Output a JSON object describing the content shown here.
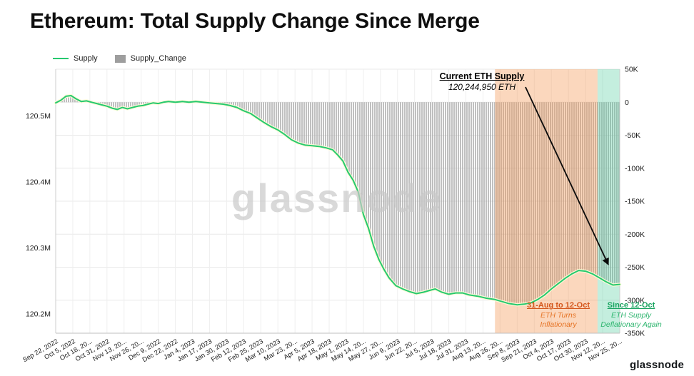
{
  "title": "Ethereum: Total Supply Change Since Merge",
  "legend": {
    "supply": "Supply",
    "supply_change": "Supply_Change"
  },
  "watermark": "glassnode",
  "footer": {
    "brand": "glassnode"
  },
  "annotations": {
    "current_supply": {
      "label": "Current ETH Supply",
      "value": "120,244,950 ETH"
    },
    "inflationary": {
      "heading": "31-Aug to 12-Oct",
      "line1": "ETH Turns",
      "line2": "Inflationary",
      "color": "#e67426"
    },
    "deflationary": {
      "heading": "Since 12-Oct",
      "line1": "ETH Supply",
      "line2": "Deflationary Again",
      "color": "#2db56e"
    }
  },
  "colors": {
    "supply_line": "#26c96f",
    "supply_change_bars": "#a8a8a8",
    "inflationary_region": "rgba(244,150,81,0.38)",
    "deflationary_region": "rgba(72,201,151,0.32)"
  },
  "chart_data": {
    "type": "line",
    "title": "Ethereum: Total Supply Change Since Merge",
    "supply_at_merge_m": 120.521,
    "x_categories": [
      "Sep 22, 2022",
      "Oct 5, 2022",
      "Oct 18, 20...",
      "Oct 31, 2022",
      "Nov 13, 20...",
      "Nov 26, 20...",
      "Dec 9, 2022",
      "Dec 22, 2022",
      "Jan 4, 2023",
      "Jan 17, 2023",
      "Jan 30, 2023",
      "Feb 12, 2023",
      "Feb 25, 2023",
      "Mar 10, 2023",
      "Mar 23, 20...",
      "Apr 5, 2023",
      "Apr 18, 2023",
      "May 1, 2023",
      "May 14, 20...",
      "May 27, 20...",
      "Jun 9, 2023",
      "Jun 22, 20...",
      "Jul 5, 2023",
      "Jul 18, 2023",
      "Jul 31, 2023",
      "Aug 13, 20...",
      "Aug 26, 20...",
      "Sep 8, 2023",
      "Sep 21, 2023",
      "Oct 4, 2023",
      "Oct 17, 2023",
      "Oct 30, 2023",
      "Nov 12, 20...",
      "Nov 25, 20..."
    ],
    "left_axis_labels": [
      "120.5M",
      "120.4M",
      "120.3M",
      "120.2M"
    ],
    "left_axis_values": [
      120.5,
      120.4,
      120.3,
      120.2
    ],
    "right_axis_labels": [
      "50K",
      "0",
      "-50K",
      "-100K",
      "-150K",
      "-200K",
      "-250K",
      "-300K",
      "-350K"
    ],
    "right_axis_values": [
      50,
      0,
      -50,
      -100,
      -150,
      -200,
      -250,
      -300,
      -350
    ],
    "series": [
      {
        "name": "Supply",
        "type": "line",
        "axis": "left",
        "color": "#26c96f",
        "points": [
          [
            0,
            120.52
          ],
          [
            0.3,
            120.524
          ],
          [
            0.6,
            120.53
          ],
          [
            0.9,
            120.531
          ],
          [
            1.2,
            120.526
          ],
          [
            1.5,
            120.522
          ],
          [
            1.8,
            120.523
          ],
          [
            2.1,
            120.521
          ],
          [
            2.4,
            120.519
          ],
          [
            2.7,
            120.517
          ],
          [
            3.0,
            120.515
          ],
          [
            3.3,
            120.512
          ],
          [
            3.6,
            120.51
          ],
          [
            3.9,
            120.513
          ],
          [
            4.2,
            120.511
          ],
          [
            4.5,
            120.513
          ],
          [
            4.8,
            120.515
          ],
          [
            5.1,
            120.516
          ],
          [
            5.4,
            120.518
          ],
          [
            5.7,
            120.52
          ],
          [
            6.0,
            120.519
          ],
          [
            6.3,
            120.521
          ],
          [
            6.6,
            120.522
          ],
          [
            7.0,
            120.521
          ],
          [
            7.4,
            120.522
          ],
          [
            7.8,
            120.521
          ],
          [
            8.2,
            120.522
          ],
          [
            8.6,
            120.521
          ],
          [
            9.0,
            120.52
          ],
          [
            9.4,
            120.519
          ],
          [
            9.8,
            120.518
          ],
          [
            10.2,
            120.516
          ],
          [
            10.6,
            120.513
          ],
          [
            11.0,
            120.508
          ],
          [
            11.4,
            120.504
          ],
          [
            11.8,
            120.497
          ],
          [
            12.2,
            120.49
          ],
          [
            12.6,
            120.484
          ],
          [
            13.0,
            120.479
          ],
          [
            13.4,
            120.472
          ],
          [
            13.8,
            120.464
          ],
          [
            14.2,
            120.459
          ],
          [
            14.6,
            120.456
          ],
          [
            15.0,
            120.455
          ],
          [
            15.4,
            120.454
          ],
          [
            15.8,
            120.452
          ],
          [
            16.2,
            120.449
          ],
          [
            16.5,
            120.441
          ],
          [
            16.8,
            120.432
          ],
          [
            17.1,
            120.415
          ],
          [
            17.4,
            120.403
          ],
          [
            17.7,
            120.385
          ],
          [
            18.0,
            120.351
          ],
          [
            18.3,
            120.33
          ],
          [
            18.6,
            120.303
          ],
          [
            18.9,
            120.283
          ],
          [
            19.2,
            120.268
          ],
          [
            19.5,
            120.255
          ],
          [
            19.9,
            120.243
          ],
          [
            20.3,
            120.238
          ],
          [
            20.7,
            120.234
          ],
          [
            21.1,
            120.231
          ],
          [
            21.5,
            120.233
          ],
          [
            21.9,
            120.236
          ],
          [
            22.2,
            120.238
          ],
          [
            22.6,
            120.233
          ],
          [
            23.0,
            120.23
          ],
          [
            23.4,
            120.232
          ],
          [
            23.8,
            120.232
          ],
          [
            24.2,
            120.229
          ],
          [
            24.7,
            120.227
          ],
          [
            25.2,
            120.224
          ],
          [
            25.7,
            120.222
          ],
          [
            26.1,
            120.219
          ],
          [
            26.5,
            120.216
          ],
          [
            27.0,
            120.214
          ],
          [
            27.4,
            120.215
          ],
          [
            27.8,
            120.217
          ],
          [
            28.2,
            120.222
          ],
          [
            28.6,
            120.229
          ],
          [
            29.0,
            120.238
          ],
          [
            29.4,
            120.246
          ],
          [
            29.8,
            120.254
          ],
          [
            30.2,
            120.261
          ],
          [
            30.6,
            120.266
          ],
          [
            31.0,
            120.265
          ],
          [
            31.4,
            120.261
          ],
          [
            31.8,
            120.255
          ],
          [
            32.2,
            120.249
          ],
          [
            32.6,
            120.244
          ],
          [
            33.0,
            120.2449
          ]
        ]
      },
      {
        "name": "Supply_Change",
        "type": "bar",
        "axis": "right",
        "color": "#a8a8a8",
        "derived": "supply minus supply_at_merge_m, in thousands of ETH"
      }
    ],
    "regions": [
      {
        "name": "inflationary",
        "from_index": 25.7,
        "to_index": 31.7,
        "color": "rgba(244,150,81,0.38)"
      },
      {
        "name": "deflationary",
        "from_index": 31.7,
        "to_index": 33.0,
        "color": "rgba(72,201,151,0.32)"
      }
    ],
    "grid": true,
    "legend_position": "top-left"
  }
}
